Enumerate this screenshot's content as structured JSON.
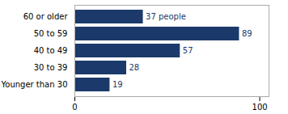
{
  "chart_data": {
    "type": "bar",
    "orientation": "horizontal",
    "categories": [
      "60 or older",
      "50 to 59",
      "40 to 49",
      "30 to 39",
      "Younger than 30"
    ],
    "values": [
      37,
      89,
      57,
      28,
      19
    ],
    "value_labels": [
      "37 people",
      "89",
      "57",
      "28",
      "19"
    ],
    "data_labels": true,
    "color": "#1b3a6b",
    "xlim": [
      0,
      105
    ],
    "xticks": [
      0,
      100
    ],
    "grid": false
  }
}
